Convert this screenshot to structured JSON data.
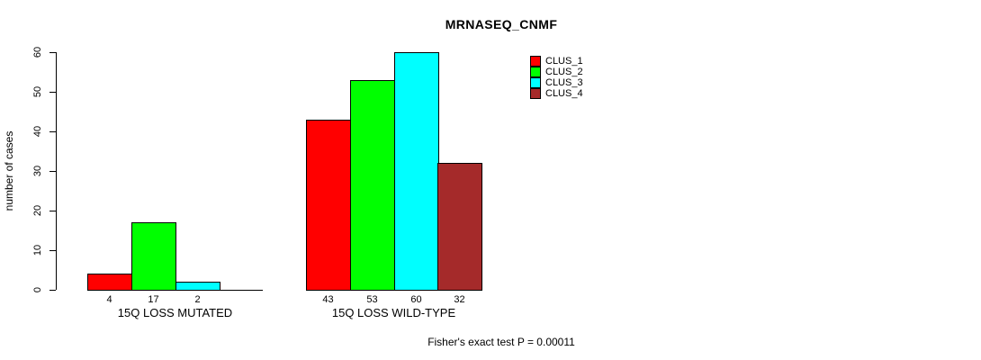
{
  "chart_data": {
    "type": "bar",
    "title": "MRNASEQ_CNMF",
    "ylabel": "number of cases",
    "xlabel": "",
    "ylim": [
      0,
      60
    ],
    "yticks": [
      0,
      10,
      20,
      30,
      40,
      50,
      60
    ],
    "grid": false,
    "legend_position": "top-right",
    "categories": [
      "15Q LOSS MUTATED",
      "15Q LOSS WILD-TYPE"
    ],
    "series": [
      {
        "name": "CLUS_1",
        "color": "#ff0000",
        "values": [
          4,
          43
        ]
      },
      {
        "name": "CLUS_2",
        "color": "#00ff00",
        "values": [
          17,
          53
        ]
      },
      {
        "name": "CLUS_3",
        "color": "#00ffff",
        "values": [
          2,
          60
        ]
      },
      {
        "name": "CLUS_4",
        "color": "#a52a2a",
        "values": [
          0,
          32
        ]
      }
    ],
    "groups": [
      {
        "label": "15Q LOSS MUTATED",
        "values": [
          4,
          17,
          2,
          0
        ],
        "bar_labels": [
          "4",
          "17",
          "2",
          ""
        ]
      },
      {
        "label": "15Q LOSS WILD-TYPE",
        "values": [
          43,
          53,
          60,
          32
        ],
        "bar_labels": [
          "43",
          "53",
          "60",
          "32"
        ]
      }
    ],
    "series_colors": [
      "#ff0000",
      "#00ff00",
      "#00ffff",
      "#a52a2a"
    ],
    "legend": [
      {
        "label": "CLUS_1",
        "color": "#ff0000"
      },
      {
        "label": "CLUS_2",
        "color": "#00ff00"
      },
      {
        "label": "CLUS_3",
        "color": "#00ffff"
      },
      {
        "label": "CLUS_4",
        "color": "#a52a2a"
      }
    ],
    "annotation": "Fisher's exact test P = 0.00011",
    "axis_color": "#000000",
    "background_color": "#ffffff"
  }
}
